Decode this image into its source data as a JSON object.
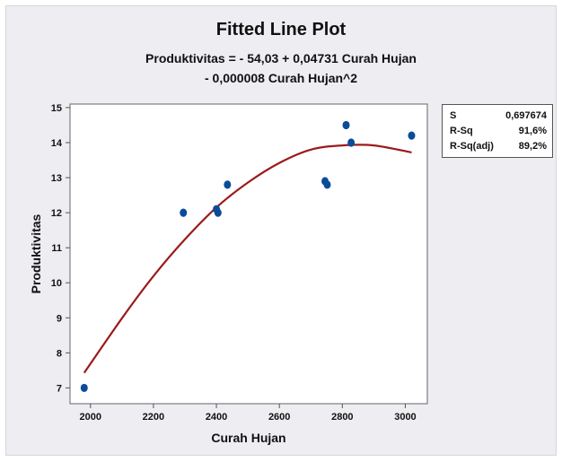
{
  "chart_data": {
    "type": "scatter",
    "title": "Fitted Line Plot",
    "subtitle_lines": [
      "Produktivitas = - 54,03 + 0,04731 Curah Hujan",
      "- 0,000008 Curah Hujan^2"
    ],
    "xlabel": "Curah Hujan",
    "ylabel": "Produktivitas",
    "xlim": [
      1935,
      3070
    ],
    "ylim": [
      6.55,
      15.1
    ],
    "x_ticks": [
      2000,
      2200,
      2400,
      2600,
      2800,
      3000
    ],
    "y_ticks": [
      7,
      8,
      9,
      10,
      11,
      12,
      13,
      14,
      15
    ],
    "grid": false,
    "series": [
      {
        "type": "scatter",
        "color": "#0a4c9a",
        "points": [
          {
            "x": 1980,
            "y": 7.0
          },
          {
            "x": 2295,
            "y": 12.0
          },
          {
            "x": 2400,
            "y": 12.1
          },
          {
            "x": 2405,
            "y": 12.0
          },
          {
            "x": 2435,
            "y": 12.8
          },
          {
            "x": 2745,
            "y": 12.9
          },
          {
            "x": 2752,
            "y": 12.8
          },
          {
            "x": 2812,
            "y": 14.5
          },
          {
            "x": 2828,
            "y": 14.0
          },
          {
            "x": 3020,
            "y": 14.2
          }
        ]
      },
      {
        "type": "line",
        "color": "#9b1b1b",
        "fitted_curve": [
          {
            "x": 1980,
            "y": 7.43
          },
          {
            "x": 2100,
            "y": 8.99
          },
          {
            "x": 2200,
            "y": 10.19
          },
          {
            "x": 2300,
            "y": 11.24
          },
          {
            "x": 2400,
            "y": 12.15
          },
          {
            "x": 2500,
            "y": 12.86
          },
          {
            "x": 2600,
            "y": 13.42
          },
          {
            "x": 2700,
            "y": 13.8
          },
          {
            "x": 2800,
            "y": 13.92
          },
          {
            "x": 2900,
            "y": 13.92
          },
          {
            "x": 3020,
            "y": 13.72
          }
        ]
      }
    ],
    "stats": [
      {
        "label": "S",
        "value": "0,697674"
      },
      {
        "label": "R-Sq",
        "value": "91,6%"
      },
      {
        "label": "R-Sq(adj)",
        "value": "89,2%"
      }
    ]
  }
}
